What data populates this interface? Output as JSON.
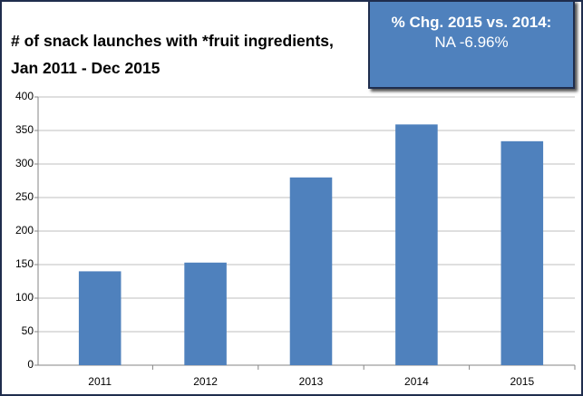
{
  "chart_data": {
    "type": "bar",
    "title": "# of snack launches with *fruit ingredients, Jan 2011 - Dec 2015",
    "annotation": {
      "heading": "% Chg. 2015 vs. 2014:",
      "text": "NA -6.96%"
    },
    "categories": [
      "2011",
      "2012",
      "2013",
      "2014",
      "2015"
    ],
    "values": [
      140,
      153,
      280,
      359,
      334
    ],
    "color": "#4f81bd",
    "ylim": [
      0,
      400
    ],
    "yticks": [
      0,
      50,
      100,
      150,
      200,
      250,
      300,
      350,
      400
    ],
    "grid": true
  }
}
